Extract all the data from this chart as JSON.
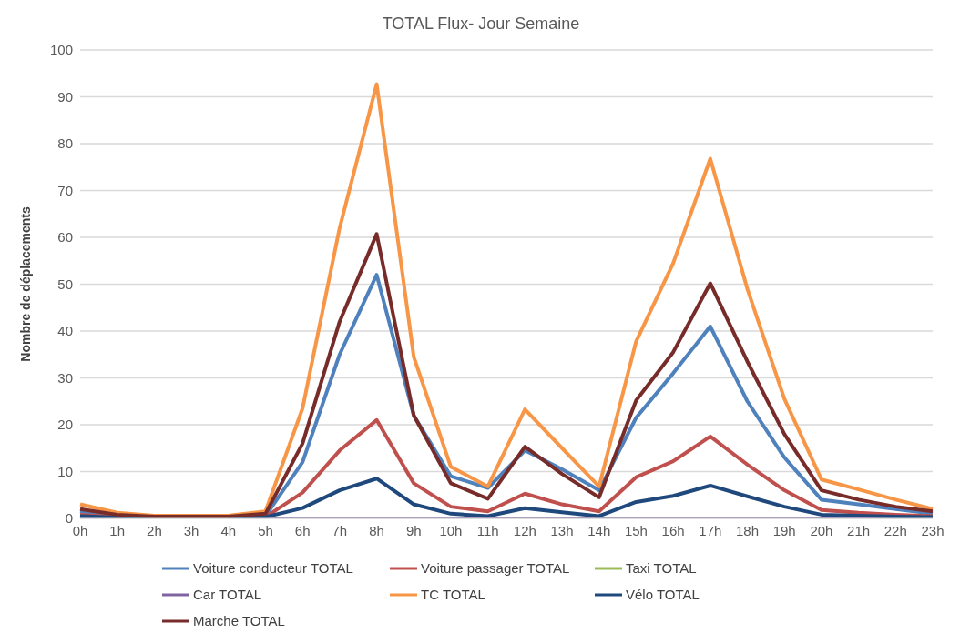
{
  "chart_data": {
    "type": "line",
    "title": "TOTAL Flux- Jour Semaine",
    "ylabel": "Nombre de déplacements",
    "categories": [
      "0h",
      "1h",
      "2h",
      "3h",
      "4h",
      "5h",
      "6h",
      "7h",
      "8h",
      "9h",
      "10h",
      "11h",
      "12h",
      "13h",
      "14h",
      "15h",
      "16h",
      "17h",
      "18h",
      "19h",
      "20h",
      "21h",
      "22h",
      "23h"
    ],
    "series": [
      {
        "name": "Voiture conducteur TOTAL",
        "color": "#4f81bd",
        "values": [
          1.5,
          0.5,
          0.3,
          0.3,
          0.3,
          0.5,
          12,
          35,
          52,
          22,
          9,
          6.5,
          14.5,
          10.5,
          6,
          21.5,
          31,
          41,
          25,
          13,
          4,
          3,
          2,
          1
        ]
      },
      {
        "name": "Voiture passager TOTAL",
        "color": "#c0504d",
        "values": [
          0.8,
          0.3,
          0.2,
          0.2,
          0.2,
          0.3,
          5.5,
          14.5,
          21,
          7.5,
          2.5,
          1.5,
          5.3,
          3,
          1.5,
          8.8,
          12.2,
          17.5,
          11.5,
          6,
          1.8,
          1.2,
          0.8,
          0.5
        ]
      },
      {
        "name": "Taxi  TOTAL",
        "color": "#9bbb59",
        "values": [
          null,
          null,
          null,
          null,
          null,
          null,
          null,
          null,
          null,
          null,
          null,
          null,
          null,
          null,
          null,
          null,
          null,
          null,
          null,
          null,
          null,
          null,
          null,
          null
        ]
      },
      {
        "name": "Car  TOTAL",
        "color": "#8064a2",
        "values": [
          0,
          0,
          0,
          0,
          0,
          0,
          0,
          0,
          0,
          0,
          0,
          0,
          0,
          0,
          0,
          0,
          0,
          0,
          0,
          0,
          0,
          0,
          0,
          0
        ]
      },
      {
        "name": "TC TOTAL",
        "color": "#f79646",
        "values": [
          3,
          1.2,
          0.6,
          0.6,
          0.6,
          1.5,
          23.5,
          62,
          92.7,
          34.5,
          11,
          6.8,
          23.3,
          15,
          6.8,
          37.8,
          54.5,
          76.8,
          49,
          25.5,
          8.3,
          6.2,
          4,
          2
        ]
      },
      {
        "name": "Vélo TOTAL",
        "color": "#1f497d",
        "values": [
          0.5,
          0.2,
          0.1,
          0.1,
          0.1,
          0.3,
          2.2,
          6,
          8.5,
          3,
          1,
          0.5,
          2.2,
          1.3,
          0.5,
          3.5,
          4.8,
          7,
          4.7,
          2.5,
          0.8,
          0.6,
          0.4,
          0.3
        ]
      },
      {
        "name": "Marche TOTAL",
        "color": "#772c2a",
        "values": [
          2,
          0.8,
          0.4,
          0.4,
          0.4,
          1,
          16,
          42,
          60.7,
          22,
          7.5,
          4.2,
          15.3,
          9.5,
          4.5,
          25.2,
          35.5,
          50.2,
          33.5,
          18,
          6,
          4,
          2.5,
          1.5
        ]
      }
    ],
    "ylim": [
      0,
      100
    ],
    "yticks": [
      0,
      10,
      20,
      30,
      40,
      50,
      60,
      70,
      80,
      90,
      100
    ],
    "grid": "y",
    "legend": "bottom",
    "marker": "none",
    "line_style": "solid"
  }
}
